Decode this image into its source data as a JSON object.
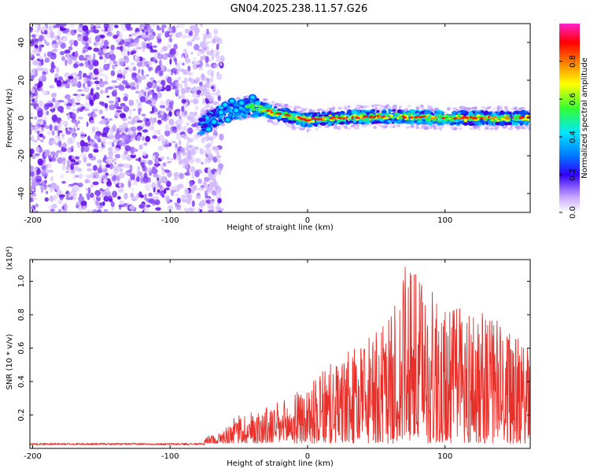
{
  "title": "GN04.2025.238.11.57.G26",
  "chart_data": [
    {
      "type": "heatmap",
      "xlabel": "Height of straight line (km)",
      "ylabel": "Frequency (Hz)",
      "xlim": [
        -202,
        162
      ],
      "ylim": [
        -50,
        50
      ],
      "xticks": [
        -200,
        -100,
        0,
        100
      ],
      "yticks": [
        -40,
        -20,
        0,
        20,
        40
      ],
      "colorbar": {
        "label": "Normalized spectral amplitude",
        "range": [
          0,
          1
        ],
        "ticks": [
          0.0,
          0.2,
          0.4,
          0.6,
          0.8
        ]
      },
      "ridge": [
        {
          "x": -80,
          "y": -5
        },
        {
          "x": -60,
          "y": 3
        },
        {
          "x": -40,
          "y": 6
        },
        {
          "x": -20,
          "y": 2
        },
        {
          "x": 0,
          "y": -1
        },
        {
          "x": 20,
          "y": 0
        },
        {
          "x": 60,
          "y": 1
        },
        {
          "x": 100,
          "y": 0
        },
        {
          "x": 160,
          "y": 0
        }
      ]
    },
    {
      "type": "line",
      "xlabel": "Height of straight line (km)",
      "ylabel": "SNR (10 * v/v)",
      "scale_label": "(x10⁴)",
      "xlim": [
        -202,
        162
      ],
      "ylim": [
        0,
        1.13
      ],
      "xticks": [
        -200,
        -100,
        0,
        100
      ],
      "yticks": [
        0.2,
        0.4,
        0.6,
        0.8,
        1.0
      ],
      "series": [
        {
          "name": "SNR",
          "color": "#e8302a",
          "envelope": [
            {
              "x": -202,
              "y": 0.03
            },
            {
              "x": -80,
              "y": 0.03
            },
            {
              "x": -65,
              "y": 0.06
            },
            {
              "x": -50,
              "y": 0.18
            },
            {
              "x": -40,
              "y": 0.2
            },
            {
              "x": -20,
              "y": 0.25
            },
            {
              "x": 0,
              "y": 0.35
            },
            {
              "x": 20,
              "y": 0.5
            },
            {
              "x": 40,
              "y": 0.6
            },
            {
              "x": 60,
              "y": 0.75
            },
            {
              "x": 72,
              "y": 1.1
            },
            {
              "x": 100,
              "y": 0.85
            },
            {
              "x": 120,
              "y": 0.85
            },
            {
              "x": 140,
              "y": 0.75
            },
            {
              "x": 162,
              "y": 0.55
            }
          ]
        }
      ]
    }
  ]
}
